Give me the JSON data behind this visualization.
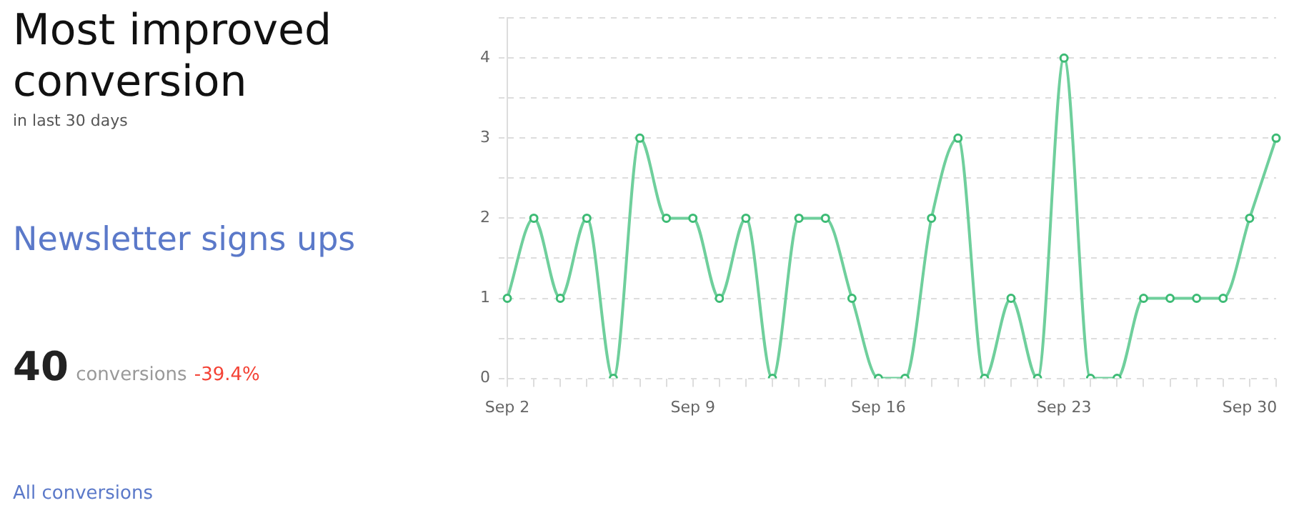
{
  "chart_data": {
    "type": "line",
    "title": "Most improved conversion",
    "subtitle": "in last 30 days",
    "annotations": [
      "Newsletter signs ups",
      "40",
      "conversions",
      "-39.4%",
      "All conversions"
    ],
    "categories": [
      "Sep 2",
      null,
      null,
      null,
      null,
      null,
      null,
      "Sep 9",
      null,
      null,
      null,
      null,
      null,
      null,
      "Sep 16",
      null,
      null,
      null,
      null,
      null,
      null,
      "Sep 23",
      null,
      null,
      null,
      null,
      null,
      null,
      "Sep 30",
      null
    ],
    "series": [
      {
        "color": "#6fcf9c",
        "values": [
          1,
          2,
          1,
          2,
          0,
          3,
          2,
          2,
          1,
          2,
          0,
          2,
          2,
          1,
          0,
          0,
          2,
          3,
          0,
          1,
          0,
          4,
          0,
          0,
          1,
          1,
          1,
          1,
          2,
          3
        ]
      }
    ],
    "ylim": [
      0,
      4.5
    ],
    "yticks": [
      0,
      {
        "value": 0.5,
        "label": null
      },
      1,
      {
        "value": 1.5,
        "label": null
      },
      2,
      {
        "value": 2.5,
        "label": null
      },
      3,
      {
        "value": 3.5,
        "label": null
      },
      4,
      {
        "value": 4.5,
        "label": null
      }
    ],
    "grid": "y",
    "legend": false,
    "marker": "circle",
    "line_style": "solid"
  }
}
